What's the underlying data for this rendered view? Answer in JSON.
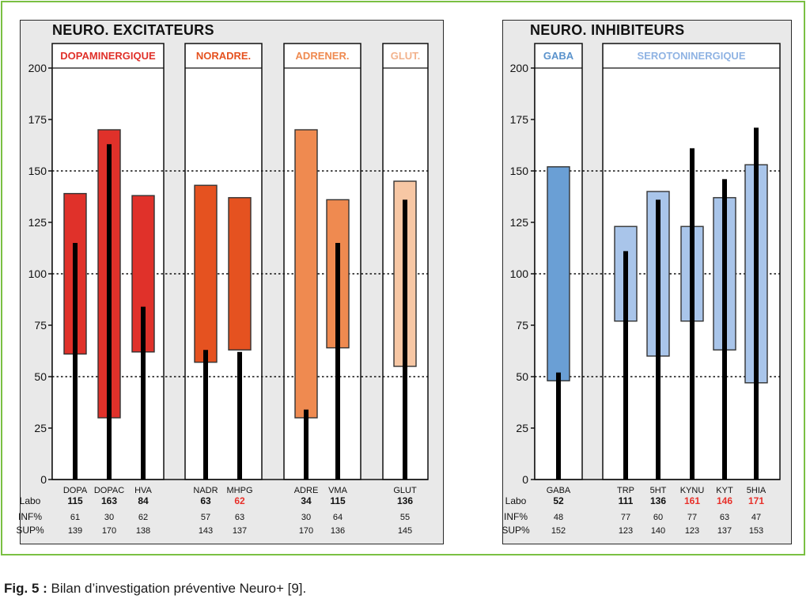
{
  "caption": {
    "label": "Fig. 5 :",
    "text": " Bilan d’investigation préventive Neuro+ [9]."
  },
  "colors": {
    "frame": "#7ac043",
    "panel_bg": "#e9e9e9",
    "bar_edge": "#333333",
    "marker": "#000000",
    "abnormal": "#e8302a"
  },
  "chart_data": [
    {
      "type": "bar",
      "title": "NEURO. EXCITATEURS",
      "ylim": [
        0,
        200
      ],
      "yticks": [
        "0",
        "25",
        "50",
        "75",
        "100",
        "125",
        "150",
        "175",
        "200"
      ],
      "reference_lines": [
        50,
        100,
        150
      ],
      "row_labels": [
        "Labo",
        "INF%",
        "SUP%"
      ],
      "groups": [
        {
          "name": "DOPAMINERGIQUE",
          "color": "#e0312a",
          "label_color": "#e0312a",
          "items": [
            {
              "name": "DOPA",
              "labo": 115,
              "inf": 61,
              "sup": 139,
              "labo_display": "115",
              "inf_display": "61",
              "sup_display": "139",
              "flag": false
            },
            {
              "name": "DOPAC",
              "labo": 163,
              "inf": 30,
              "sup": 170,
              "labo_display": "163",
              "inf_display": "30",
              "sup_display": "170",
              "flag": false
            },
            {
              "name": "HVA",
              "labo": 84,
              "inf": 62,
              "sup": 138,
              "labo_display": "84",
              "inf_display": "62",
              "sup_display": "138",
              "flag": false
            }
          ]
        },
        {
          "name": "NORADRE.",
          "color": "#e55220",
          "label_color": "#e55220",
          "items": [
            {
              "name": "NADR",
              "labo": 63,
              "inf": 57,
              "sup": 143,
              "labo_display": "63",
              "inf_display": "57",
              "sup_display": "143",
              "flag": false
            },
            {
              "name": "MHPG",
              "labo": 62,
              "inf": 63,
              "sup": 137,
              "labo_display": "62",
              "inf_display": "63",
              "sup_display": "137",
              "flag": true
            }
          ]
        },
        {
          "name": "ADRENER.",
          "color": "#ef8a50",
          "label_color": "#ef8a50",
          "items": [
            {
              "name": "ADRE",
              "labo": 34,
              "inf": 30,
              "sup": 170,
              "labo_display": "34",
              "inf_display": "30",
              "sup_display": "170",
              "flag": false
            },
            {
              "name": "VMA",
              "labo": 115,
              "inf": 64,
              "sup": 136,
              "labo_display": "115",
              "inf_display": "64",
              "sup_display": "136",
              "flag": false
            }
          ]
        },
        {
          "name": "GLUT.",
          "color": "#f7c7a4",
          "label_color": "#f2b28c",
          "items": [
            {
              "name": "GLUT",
              "labo": 136,
              "inf": 55,
              "sup": 145,
              "labo_display": "136",
              "inf_display": "55",
              "sup_display": "145",
              "flag": false
            }
          ]
        }
      ]
    },
    {
      "type": "bar",
      "title": "NEURO. INHIBITEURS",
      "ylim": [
        0,
        200
      ],
      "yticks": [
        "0",
        "25",
        "50",
        "75",
        "100",
        "125",
        "150",
        "175",
        "200"
      ],
      "reference_lines": [
        50,
        100,
        150
      ],
      "row_labels": [
        "Labo",
        "INF%",
        "SUP%"
      ],
      "groups": [
        {
          "name": "GABA",
          "color": "#6a9fd5",
          "label_color": "#5b93cc",
          "items": [
            {
              "name": "GABA",
              "labo": 52,
              "inf": 48,
              "sup": 152,
              "labo_display": "52",
              "inf_display": "48",
              "sup_display": "152",
              "flag": false
            }
          ]
        },
        {
          "name": "SEROTONINERGIQUE",
          "color": "#a9c5ea",
          "label_color": "#8fb3e3",
          "items": [
            {
              "name": "TRP",
              "labo": 111,
              "inf": 77,
              "sup": 123,
              "labo_display": "111",
              "inf_display": "77",
              "sup_display": "123",
              "flag": false
            },
            {
              "name": "5HT",
              "labo": 136,
              "inf": 60,
              "sup": 140,
              "labo_display": "136",
              "inf_display": "60",
              "sup_display": "140",
              "flag": false
            },
            {
              "name": "KYNU",
              "labo": 161,
              "inf": 77,
              "sup": 123,
              "labo_display": "161",
              "inf_display": "77",
              "sup_display": "123",
              "flag": true
            },
            {
              "name": "KYT",
              "labo": 146,
              "inf": 63,
              "sup": 137,
              "labo_display": "146",
              "inf_display": "63",
              "sup_display": "137",
              "flag": true
            },
            {
              "name": "5HIA",
              "labo": 171,
              "inf": 47,
              "sup": 153,
              "labo_display": "171",
              "inf_display": "47",
              "sup_display": "153",
              "flag": true
            }
          ]
        }
      ]
    }
  ]
}
